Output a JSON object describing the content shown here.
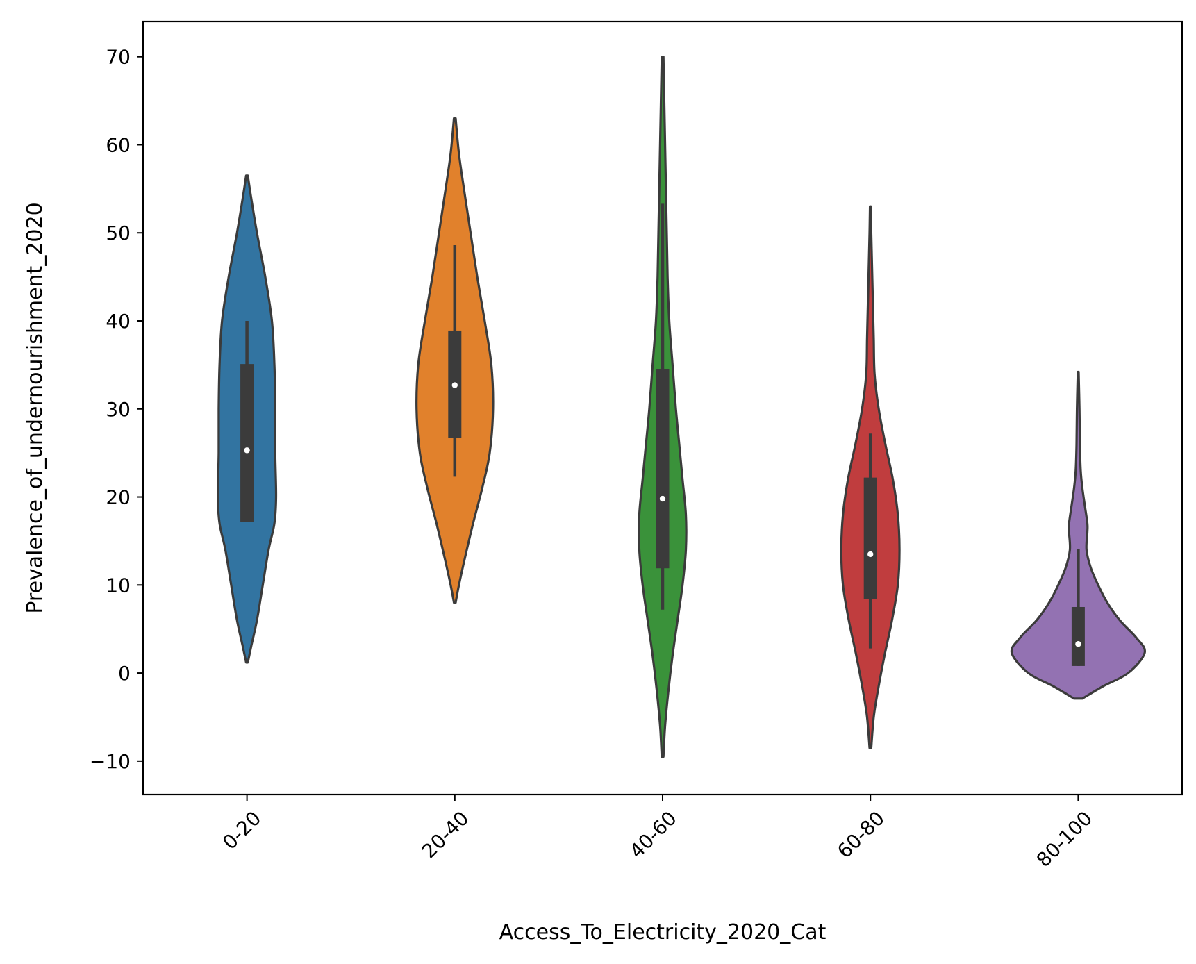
{
  "chart_data": {
    "type": "violin",
    "title": "",
    "xlabel": "Access_To_Electricity_2020_Cat",
    "ylabel": "Prevalence_of_undernourishment_2020",
    "ylim": [
      -13.8,
      74
    ],
    "yticks": [
      -10,
      0,
      10,
      20,
      30,
      40,
      50,
      60,
      70
    ],
    "ytick_labels": [
      "−10",
      "0",
      "10",
      "20",
      "30",
      "40",
      "50",
      "60",
      "70"
    ],
    "grid": false,
    "legend": "none",
    "categories": [
      "0-20",
      "20-40",
      "40-60",
      "60-80",
      "80-100"
    ],
    "colors": [
      "#3274a1",
      "#e1812c",
      "#3a923a",
      "#c03d3e",
      "#9372b2"
    ],
    "violins": [
      {
        "category": "0-20",
        "min_extent": 1.2,
        "max_extent": 56.5,
        "whisker_low": 17.2,
        "q1": 17.2,
        "median": 25.3,
        "q3": 35.1,
        "whisker_high": 40.0,
        "profile": [
          [
            1.2,
            0.01
          ],
          [
            3,
            0.05
          ],
          [
            6,
            0.12
          ],
          [
            10,
            0.19
          ],
          [
            14,
            0.26
          ],
          [
            17,
            0.33
          ],
          [
            20,
            0.35
          ],
          [
            25,
            0.34
          ],
          [
            30,
            0.34
          ],
          [
            35,
            0.33
          ],
          [
            40,
            0.3
          ],
          [
            45,
            0.22
          ],
          [
            50,
            0.12
          ],
          [
            54,
            0.05
          ],
          [
            56.5,
            0.01
          ]
        ]
      },
      {
        "category": "20-40",
        "min_extent": 8.0,
        "max_extent": 63.0,
        "whisker_low": 22.3,
        "q1": 26.7,
        "median": 32.7,
        "q3": 38.9,
        "whisker_high": 48.6,
        "profile": [
          [
            8,
            0.01
          ],
          [
            10,
            0.05
          ],
          [
            13,
            0.12
          ],
          [
            17,
            0.22
          ],
          [
            21,
            0.33
          ],
          [
            25,
            0.42
          ],
          [
            30,
            0.46
          ],
          [
            35,
            0.44
          ],
          [
            40,
            0.36
          ],
          [
            45,
            0.27
          ],
          [
            50,
            0.19
          ],
          [
            55,
            0.11
          ],
          [
            59,
            0.05
          ],
          [
            63,
            0.01
          ]
        ]
      },
      {
        "category": "40-60",
        "min_extent": -9.5,
        "max_extent": 70.0,
        "whisker_low": 7.2,
        "q1": 11.9,
        "median": 19.8,
        "q3": 34.5,
        "whisker_high": 53.3,
        "profile": [
          [
            -9.5,
            0.01
          ],
          [
            -6,
            0.03
          ],
          [
            -2,
            0.07
          ],
          [
            2,
            0.12
          ],
          [
            6,
            0.18
          ],
          [
            10,
            0.24
          ],
          [
            14,
            0.28
          ],
          [
            18,
            0.28
          ],
          [
            22,
            0.24
          ],
          [
            26,
            0.2
          ],
          [
            30,
            0.16
          ],
          [
            35,
            0.12
          ],
          [
            40,
            0.08
          ],
          [
            45,
            0.06
          ],
          [
            50,
            0.05
          ],
          [
            55,
            0.04
          ],
          [
            60,
            0.03
          ],
          [
            65,
            0.02
          ],
          [
            70,
            0.01
          ]
        ]
      },
      {
        "category": "60-80",
        "min_extent": -8.5,
        "max_extent": 53.0,
        "whisker_low": 2.8,
        "q1": 8.4,
        "median": 13.5,
        "q3": 22.2,
        "whisker_high": 27.2,
        "profile": [
          [
            -8.5,
            0.01
          ],
          [
            -5,
            0.04
          ],
          [
            -2,
            0.09
          ],
          [
            2,
            0.17
          ],
          [
            6,
            0.26
          ],
          [
            10,
            0.33
          ],
          [
            14,
            0.35
          ],
          [
            18,
            0.33
          ],
          [
            22,
            0.27
          ],
          [
            26,
            0.18
          ],
          [
            30,
            0.1
          ],
          [
            34,
            0.05
          ],
          [
            38,
            0.04
          ],
          [
            42,
            0.03
          ],
          [
            46,
            0.02
          ],
          [
            50,
            0.01
          ],
          [
            53,
            0.005
          ]
        ]
      },
      {
        "category": "80-100",
        "min_extent": -2.9,
        "max_extent": 34.2,
        "whisker_low": 0.8,
        "q1": 0.8,
        "median": 3.3,
        "q3": 7.5,
        "whisker_high": 14.1,
        "profile": [
          [
            -2.9,
            0.05
          ],
          [
            -1.5,
            0.3
          ],
          [
            0,
            0.6
          ],
          [
            2.3,
            0.8
          ],
          [
            4,
            0.7
          ],
          [
            6,
            0.5
          ],
          [
            8,
            0.35
          ],
          [
            10,
            0.24
          ],
          [
            12,
            0.15
          ],
          [
            14,
            0.1
          ],
          [
            16,
            0.11
          ],
          [
            17,
            0.11
          ],
          [
            19,
            0.08
          ],
          [
            21,
            0.05
          ],
          [
            23,
            0.03
          ],
          [
            26,
            0.02
          ],
          [
            30,
            0.015
          ],
          [
            34.2,
            0.005
          ]
        ]
      }
    ]
  }
}
